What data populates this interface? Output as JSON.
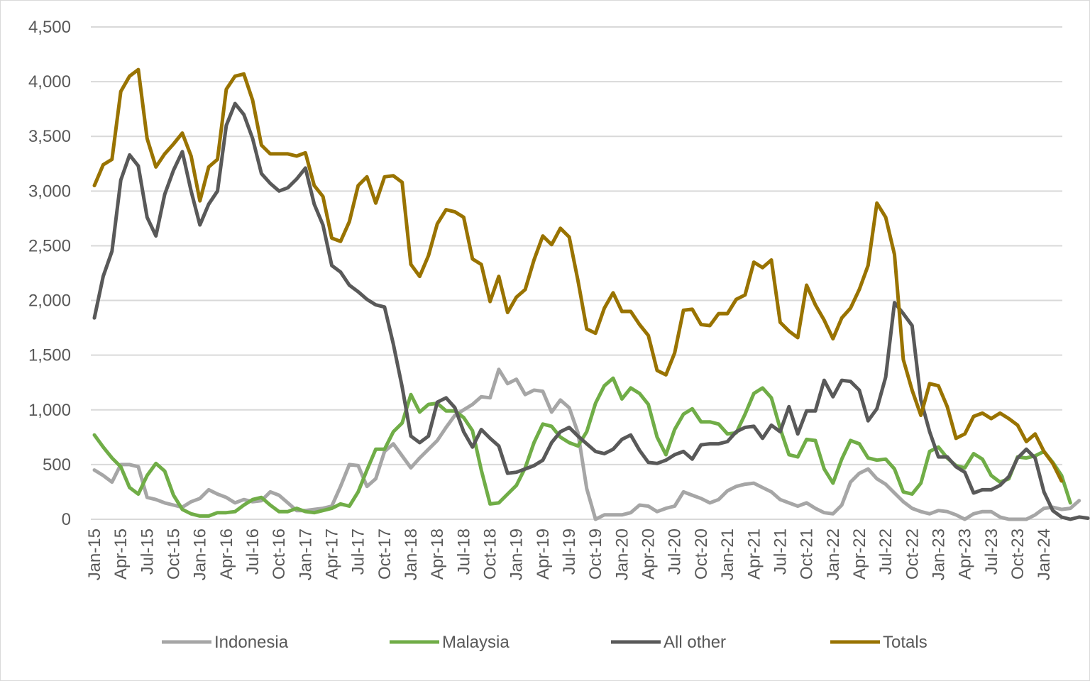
{
  "chart_data": {
    "type": "line",
    "title": "",
    "xlabel": "",
    "ylabel": "",
    "ylim": [
      0,
      4500
    ],
    "yticks": [
      0,
      500,
      1000,
      1500,
      2000,
      2500,
      3000,
      3500,
      4000,
      4500
    ],
    "ytick_labels": [
      "0",
      "500",
      "1,000",
      "1,500",
      "2,000",
      "2,500",
      "3,000",
      "3,500",
      "4,000",
      "4,500"
    ],
    "grid": "horizontal",
    "legend_position": "bottom",
    "x_start": "Jan-15",
    "x_end": "Apr-24",
    "x_tick_labels": [
      "Jan-15",
      "Apr-15",
      "Jul-15",
      "Oct-15",
      "Jan-16",
      "Apr-16",
      "Jul-16",
      "Oct-16",
      "Jan-17",
      "Apr-17",
      "Jul-17",
      "Oct-17",
      "Jan-18",
      "Apr-18",
      "Jul-18",
      "Oct-18",
      "Jan-19",
      "Apr-19",
      "Jul-19",
      "Oct-19",
      "Jan-20",
      "Apr-20",
      "Jul-20",
      "Oct-20",
      "Jan-21",
      "Apr-21",
      "Jul-21",
      "Oct-21",
      "Jan-22",
      "Apr-22",
      "Jul-22",
      "Oct-22",
      "Jan-23",
      "Apr-23",
      "Jul-23",
      "Oct-23",
      "Jan-24"
    ],
    "series": [
      {
        "name": "Indonesia",
        "color": "#a6a6a6",
        "values": [
          450,
          400,
          340,
          500,
          500,
          480,
          200,
          180,
          150,
          130,
          110,
          160,
          190,
          270,
          230,
          200,
          150,
          180,
          160,
          170,
          250,
          220,
          150,
          80,
          80,
          90,
          100,
          120,
          300,
          500,
          490,
          300,
          370,
          620,
          690,
          580,
          470,
          560,
          640,
          720,
          840,
          950,
          1000,
          1050,
          1120,
          1110,
          1370,
          1240,
          1280,
          1140,
          1180,
          1170,
          980,
          1090,
          1020,
          790,
          280,
          0,
          40,
          40,
          40,
          60,
          130,
          120,
          70,
          100,
          120,
          250,
          220,
          190,
          150,
          180,
          260,
          300,
          320,
          330,
          290,
          250,
          180,
          150,
          120,
          150,
          100,
          60,
          50,
          130,
          340,
          420,
          460,
          370,
          320,
          240,
          160,
          100,
          70,
          50,
          80,
          70,
          40,
          0,
          50,
          70,
          70,
          20,
          0,
          0,
          0,
          40,
          100,
          110,
          90,
          100,
          170
        ]
      },
      {
        "name": "Malaysia",
        "color": "#70ad47",
        "values": [
          770,
          660,
          560,
          480,
          290,
          230,
          400,
          510,
          440,
          220,
          90,
          50,
          30,
          30,
          60,
          60,
          70,
          130,
          180,
          200,
          130,
          70,
          70,
          100,
          70,
          60,
          80,
          100,
          140,
          120,
          250,
          450,
          640,
          640,
          800,
          880,
          1140,
          980,
          1050,
          1060,
          990,
          990,
          930,
          810,
          450,
          140,
          150,
          230,
          310,
          470,
          700,
          870,
          850,
          750,
          700,
          670,
          800,
          1060,
          1220,
          1290,
          1100,
          1200,
          1150,
          1050,
          750,
          590,
          820,
          960,
          1010,
          890,
          890,
          870,
          780,
          790,
          960,
          1150,
          1200,
          1110,
          830,
          590,
          570,
          730,
          720,
          460,
          330,
          550,
          720,
          690,
          560,
          540,
          550,
          460,
          250,
          230,
          330,
          620,
          660,
          560,
          490,
          470,
          600,
          550,
          400,
          340,
          370,
          570,
          560,
          580,
          620,
          520,
          400,
          150
        ]
      },
      {
        "name": "All other",
        "color": "#595959",
        "values": [
          1840,
          2220,
          2450,
          3100,
          3330,
          3230,
          2760,
          2590,
          2970,
          3190,
          3360,
          3000,
          2690,
          2880,
          3000,
          3600,
          3800,
          3700,
          3480,
          3160,
          3070,
          3000,
          3030,
          3110,
          3210,
          2880,
          2690,
          2320,
          2260,
          2140,
          2080,
          2010,
          1960,
          1940,
          1600,
          1210,
          760,
          700,
          760,
          1070,
          1110,
          1020,
          800,
          660,
          820,
          740,
          670,
          420,
          430,
          460,
          490,
          540,
          700,
          800,
          840,
          760,
          690,
          620,
          600,
          640,
          730,
          770,
          630,
          520,
          510,
          540,
          590,
          620,
          550,
          680,
          690,
          690,
          710,
          800,
          840,
          850,
          740,
          860,
          800,
          1030,
          780,
          990,
          990,
          1270,
          1120,
          1270,
          1260,
          1180,
          900,
          1010,
          1300,
          1980,
          1880,
          1770,
          1090,
          800,
          570,
          570,
          480,
          430,
          240,
          270,
          270,
          310,
          390,
          560,
          640,
          560,
          250,
          80,
          20,
          0,
          20,
          10
        ]
      },
      {
        "name": "Totals",
        "color": "#997300",
        "values": [
          3050,
          3240,
          3290,
          3910,
          4050,
          4110,
          3480,
          3220,
          3340,
          3430,
          3530,
          3320,
          2910,
          3220,
          3290,
          3930,
          4050,
          4070,
          3830,
          3420,
          3340,
          3340,
          3340,
          3320,
          3350,
          3050,
          2950,
          2570,
          2540,
          2720,
          3050,
          3130,
          2890,
          3130,
          3140,
          3080,
          2330,
          2220,
          2410,
          2700,
          2830,
          2810,
          2760,
          2380,
          2330,
          1990,
          2220,
          1890,
          2030,
          2100,
          2370,
          2590,
          2510,
          2660,
          2580,
          2180,
          1740,
          1700,
          1930,
          2070,
          1900,
          1900,
          1780,
          1680,
          1360,
          1320,
          1520,
          1910,
          1920,
          1780,
          1770,
          1880,
          1880,
          2010,
          2050,
          2350,
          2300,
          2370,
          1800,
          1720,
          1660,
          2140,
          1960,
          1820,
          1650,
          1840,
          1930,
          2100,
          2320,
          2890,
          2760,
          2420,
          1460,
          1180,
          950,
          1240,
          1220,
          1030,
          740,
          780,
          940,
          970,
          920,
          970,
          920,
          860,
          710,
          780,
          620,
          510,
          350
        ]
      }
    ]
  }
}
